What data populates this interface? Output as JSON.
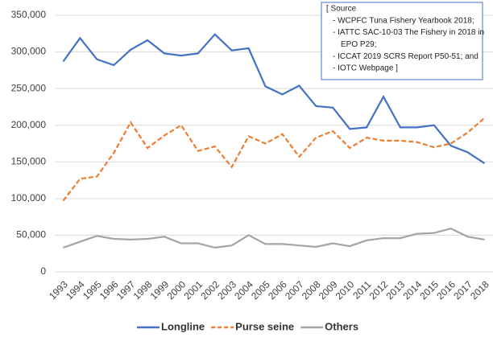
{
  "chart_data": {
    "type": "line",
    "categories": [
      "1993",
      "1994",
      "1995",
      "1996",
      "1997",
      "1998",
      "1999",
      "2000",
      "2001",
      "2002",
      "2003",
      "2004",
      "2005",
      "2006",
      "2007",
      "2008",
      "2009",
      "2010",
      "2011",
      "2012",
      "2013",
      "2014",
      "2015",
      "2016",
      "2017",
      "2018"
    ],
    "series": [
      {
        "name": "Longline",
        "color": "#4472c4",
        "line_style": "solid",
        "values": [
          287000,
          319000,
          290000,
          282000,
          303000,
          316000,
          298000,
          295000,
          298000,
          324000,
          302000,
          305000,
          253000,
          242000,
          254000,
          226000,
          224000,
          195000,
          197000,
          239000,
          197000,
          197000,
          200000,
          172000,
          163000,
          148000
        ]
      },
      {
        "name": "Purse seine",
        "color": "#ed7d31",
        "line_style": "dashed",
        "values": [
          97000,
          127000,
          130000,
          162000,
          204000,
          169000,
          186000,
          200000,
          165000,
          171000,
          143000,
          185000,
          175000,
          188000,
          157000,
          183000,
          192000,
          169000,
          183000,
          179000,
          179000,
          177000,
          170000,
          175000,
          190000,
          210000
        ]
      },
      {
        "name": "Others",
        "color": "#a5a5a5",
        "line_style": "solid",
        "values": [
          33000,
          41000,
          49000,
          45000,
          44000,
          45000,
          48000,
          39000,
          39000,
          33000,
          36000,
          50000,
          38000,
          38000,
          36000,
          34000,
          39000,
          35000,
          43000,
          46000,
          46000,
          52000,
          53000,
          59000,
          48000,
          44000
        ]
      }
    ],
    "ylim": [
      0,
      350000
    ],
    "yticks": [
      0,
      {
        "value": 50000,
        "label": "50,000"
      },
      {
        "value": 100000,
        "label": "100,000"
      },
      {
        "value": 150000,
        "label": "150,000"
      },
      {
        "value": 200000,
        "label": "200,000"
      },
      {
        "value": 250000,
        "label": "250,000"
      },
      {
        "value": 300000,
        "label": "300,000"
      },
      {
        "value": 350000,
        "label": "350,000"
      }
    ],
    "grid": true,
    "legend": "bottom",
    "annotation_lines": [
      "[ Source",
      "- WCPFC Tuna  Fishery Yearbook 2018;",
      "- IATTC  SAC-10-03 The Fishery in 2018 in",
      "EPO  P29;",
      "- ICCAT 2019 SCRS Report P50-51; and",
      "- IOTC Webpage ]"
    ]
  }
}
